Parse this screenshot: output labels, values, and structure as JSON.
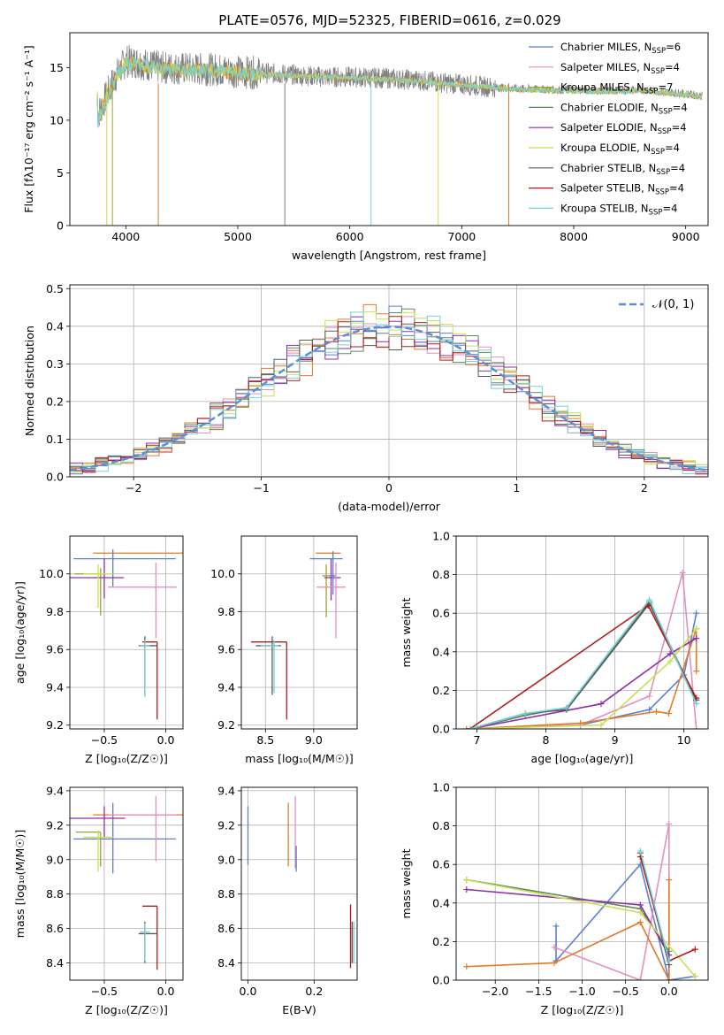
{
  "chart_data": [
    {
      "type": "line",
      "panel": "spectrum",
      "title": "PLATE=0576, MJD=52325, FIBERID=0616, z=0.029",
      "xlabel": "wavelength [Angstrom, rest frame]",
      "ylabel": "Flux [fλ10⁻¹⁷ erg cm⁻² s⁻¹ A⁻¹]",
      "xlim": [
        3500,
        9200
      ],
      "ylim": [
        0,
        18.3
      ],
      "xticks": [
        "4000",
        "5000",
        "6000",
        "7000",
        "8000",
        "9000"
      ],
      "yticks": [
        "0",
        "5",
        "10",
        "15"
      ],
      "grid": false,
      "legend_position": "top-right",
      "legend": [
        {
          "label": "Chabrier MILES, N",
          "sub": "SSP",
          "tail": "=6",
          "color": "#5b7fd1"
        },
        {
          "label": "Salpeter MILES, N",
          "sub": "SSP",
          "tail": "=4",
          "color": "#e38fbf"
        },
        {
          "label": "Kroupa MILES, N",
          "sub": "SSP",
          "tail": "=7",
          "color": "#9aa52d"
        },
        {
          "label": "Chabrier ELODIE, N",
          "sub": "SSP",
          "tail": "=4",
          "color": "#5b8a5b"
        },
        {
          "label": "Salpeter ELODIE, N",
          "sub": "SSP",
          "tail": "=4",
          "color": "#8e2fa8"
        },
        {
          "label": "Kroupa ELODIE, N",
          "sub": "SSP",
          "tail": "=4",
          "color": "#d4d84a"
        },
        {
          "label": "Chabrier STELIB, N",
          "sub": "SSP",
          "tail": "=4",
          "color": "#5a5a5a"
        },
        {
          "label": "Salpeter STELIB, N",
          "sub": "SSP",
          "tail": "=4",
          "color": "#b01c1c"
        },
        {
          "label": "Kroupa STELIB, N",
          "sub": "SSP",
          "tail": "=4",
          "color": "#74d2d6"
        }
      ],
      "series": [
        {
          "name": "data",
          "color": "#808080",
          "x": [
            3750,
            3900,
            4000,
            4100,
            4300,
            4500,
            4800,
            5000,
            5200,
            5500,
            5800,
            6000,
            6300,
            6600,
            7000,
            7300,
            7500,
            7800,
            8000,
            8300,
            8600,
            8800,
            9000,
            9150
          ],
          "y": [
            10.5,
            14.0,
            15.6,
            15.5,
            15.0,
            14.9,
            14.8,
            14.6,
            14.5,
            14.3,
            14.1,
            14.1,
            14.0,
            13.8,
            13.4,
            13.1,
            13.0,
            12.9,
            12.9,
            12.8,
            12.9,
            12.7,
            12.5,
            12.3
          ]
        },
        {
          "name": "model",
          "color": "#74d2d6",
          "x": [
            3750,
            3900,
            4000,
            4100,
            4300,
            4500,
            4800,
            5000,
            5200,
            5500,
            5800,
            6000,
            6300,
            6600,
            7000,
            7300,
            7500,
            7800,
            8000,
            8300,
            8600,
            8800,
            9000,
            9150
          ],
          "y": [
            10.0,
            13.8,
            15.4,
            15.3,
            14.9,
            14.8,
            14.7,
            14.5,
            14.4,
            14.2,
            14.1,
            14.0,
            13.9,
            13.7,
            13.3,
            13.1,
            12.9,
            12.8,
            12.8,
            12.7,
            12.8,
            12.6,
            12.4,
            12.2
          ]
        }
      ]
    },
    {
      "type": "line",
      "panel": "residuals",
      "xlabel": "(data-model)/error",
      "ylabel": "Normed distribution",
      "xlim": [
        -2.5,
        2.5
      ],
      "ylim": [
        0,
        0.51
      ],
      "xticks": [
        "−2",
        "−1",
        "0",
        "1",
        "2"
      ],
      "yticks": [
        "0.0",
        "0.1",
        "0.2",
        "0.3",
        "0.4",
        "0.5"
      ],
      "grid": true,
      "legend_position": "top-right",
      "legend_label": "𝒩(0, 1)",
      "series": [
        {
          "name": "𝒩(0, 1)",
          "style": "dashed",
          "color": "#5b8fd6",
          "function": "normal_pdf",
          "mu": 0,
          "sigma": 1
        }
      ],
      "histograms": {
        "bin_width": 0.1,
        "colors": [
          "#5b7fd1",
          "#e38fbf",
          "#e07b2a",
          "#5b8a5b",
          "#8e2fa8",
          "#c8e055",
          "#5a5a5a",
          "#b01c1c",
          "#74d2d6"
        ]
      }
    },
    {
      "type": "scatter",
      "panel": "age-vs-Z",
      "xlabel": "Z [log₁₀(Z/Z☉)]",
      "ylabel": "age  [log₁₀(age/yr)]",
      "xlim": [
        -0.78,
        0.14
      ],
      "ylim": [
        9.18,
        10.2
      ],
      "xticks": [
        "−0.5",
        "0.0"
      ],
      "yticks": [
        "9.2",
        "9.4",
        "9.6",
        "9.8",
        "10.0"
      ],
      "grid": true
    },
    {
      "type": "scatter",
      "panel": "age-vs-mass",
      "xlabel": "mass [log₁₀(M/M☉)]",
      "xlim": [
        8.25,
        9.45
      ],
      "ylim": [
        9.18,
        10.2
      ],
      "xticks": [
        "8.5",
        "9.0"
      ],
      "yticks": [
        "9.2",
        "9.4",
        "9.6",
        "9.8",
        "10.0"
      ],
      "grid": true
    },
    {
      "type": "line",
      "panel": "weight-vs-age",
      "xlabel": "age  [log₁₀(age/yr)]",
      "ylabel": "mass weight",
      "xlim": [
        6.7,
        10.35
      ],
      "ylim": [
        0,
        1.0
      ],
      "xticks": [
        "7",
        "8",
        "9",
        "10"
      ],
      "yticks": [
        "0.0",
        "0.2",
        "0.4",
        "0.6",
        "0.8",
        "1.0"
      ],
      "grid": true,
      "series": [
        {
          "name": "Chabrier MILES",
          "color": "#5b7fd1",
          "x": [
            6.9,
            8.5,
            9.5,
            10.0,
            10.18
          ],
          "y": [
            0.0,
            0.02,
            0.1,
            0.28,
            0.6
          ]
        },
        {
          "name": "Salpeter MILES",
          "color": "#e38fbf",
          "x": [
            6.9,
            8.5,
            9.5,
            9.98,
            10.18
          ],
          "y": [
            0.0,
            0.02,
            0.17,
            0.81,
            0.0
          ]
        },
        {
          "name": "Kroupa MILES",
          "color": "#e07b2a",
          "x": [
            6.85,
            8.5,
            9.6,
            9.78,
            10.18,
            10.18
          ],
          "y": [
            0.0,
            0.03,
            0.09,
            0.08,
            0.52,
            0.3
          ]
        },
        {
          "name": "Chabrier ELODIE",
          "color": "#5b8a5b",
          "x": [
            6.9,
            7.7,
            8.3,
            9.5,
            10.18
          ],
          "y": [
            0.0,
            0.07,
            0.11,
            0.66,
            0.15
          ]
        },
        {
          "name": "Salpeter ELODIE",
          "color": "#8e2fa8",
          "x": [
            6.9,
            8.8,
            9.8,
            10.18
          ],
          "y": [
            0.0,
            0.13,
            0.39,
            0.47
          ]
        },
        {
          "name": "Kroupa ELODIE",
          "color": "#c8e055",
          "x": [
            6.9,
            8.8,
            9.8,
            10.18
          ],
          "y": [
            0.0,
            0.02,
            0.35,
            0.52
          ]
        },
        {
          "name": "Chabrier STELIB",
          "color": "#5a5a5a",
          "x": [
            6.9,
            7.7,
            8.3,
            9.5,
            10.18
          ],
          "y": [
            0.0,
            0.08,
            0.1,
            0.65,
            0.15
          ]
        },
        {
          "name": "Salpeter STELIB",
          "color": "#b01c1c",
          "x": [
            6.9,
            9.48,
            10.18
          ],
          "y": [
            0.0,
            0.64,
            0.16
          ]
        },
        {
          "name": "Kroupa STELIB",
          "color": "#74d2d6",
          "x": [
            6.9,
            7.7,
            8.3,
            9.5,
            10.18
          ],
          "y": [
            0.0,
            0.08,
            0.11,
            0.67,
            0.13
          ]
        }
      ]
    },
    {
      "type": "scatter",
      "panel": "mass-vs-Z",
      "xlabel": "Z [log₁₀(Z/Z☉)]",
      "ylabel": "mass [log₁₀(M/M☉)]",
      "xlim": [
        -0.78,
        0.14
      ],
      "ylim": [
        8.3,
        9.42
      ],
      "xticks": [
        "−0.5",
        "0.0"
      ],
      "yticks": [
        "8.4",
        "8.6",
        "8.8",
        "9.0",
        "9.2",
        "9.4"
      ],
      "grid": true
    },
    {
      "type": "scatter",
      "panel": "mass-vs-ebv",
      "xlabel": "E(B-V)",
      "xlim": [
        -0.02,
        0.33
      ],
      "ylim": [
        8.3,
        9.42
      ],
      "xticks": [
        "0.0",
        "0.2"
      ],
      "yticks": [
        "8.4",
        "8.6",
        "8.8",
        "9.0",
        "9.2",
        "9.4"
      ],
      "grid": true,
      "error_bars": [
        {
          "color": "#5b7fd1",
          "x": 0.0,
          "y": [
            8.97,
            9.31
          ]
        },
        {
          "color": "#e07b2a",
          "x": 0.122,
          "y": [
            8.96,
            9.33
          ]
        },
        {
          "color": "#e38fbf",
          "x": 0.143,
          "y": [
            8.95,
            9.37
          ]
        },
        {
          "color": "#5b7fd1",
          "x": 0.146,
          "y": [
            8.93,
            9.08
          ]
        },
        {
          "color": "#b01c1c",
          "x": 0.31,
          "y": [
            8.37,
            8.74
          ]
        },
        {
          "color": "#5a5a5a",
          "x": 0.315,
          "y": [
            8.4,
            8.64
          ]
        },
        {
          "color": "#74d2d6",
          "x": 0.32,
          "y": [
            8.4,
            8.64
          ]
        }
      ]
    },
    {
      "type": "line",
      "panel": "weight-vs-Z",
      "xlabel": "Z [log₁₀(Z/Z☉)]",
      "ylabel": "mass weight",
      "xlim": [
        -2.45,
        0.45
      ],
      "ylim": [
        0,
        1.0
      ],
      "xticks": [
        "−2.0",
        "−1.5",
        "−1.0",
        "−0.5",
        "0.0"
      ],
      "yticks": [
        "0.0",
        "0.2",
        "0.4",
        "0.6",
        "0.8",
        "1.0"
      ],
      "grid": true,
      "series": [
        {
          "name": "Chabrier MILES",
          "color": "#5b7fd1",
          "x": [
            -1.3,
            -1.3,
            -0.33,
            0.0,
            0.3
          ],
          "y": [
            0.28,
            0.1,
            0.6,
            0.0,
            0.02
          ]
        },
        {
          "name": "Salpeter MILES",
          "color": "#e38fbf",
          "x": [
            -1.32,
            -0.33,
            0.0,
            0.0
          ],
          "y": [
            0.17,
            0.0,
            0.81,
            0.0
          ]
        },
        {
          "name": "Kroupa MILES",
          "color": "#e07b2a",
          "x": [
            -2.33,
            -1.32,
            -0.33,
            0.0,
            0.0
          ],
          "y": [
            0.07,
            0.09,
            0.3,
            0.0,
            0.52
          ]
        },
        {
          "name": "Chabrier ELODIE",
          "color": "#5b8a5b",
          "x": [
            -2.33,
            -0.33,
            0.0
          ],
          "y": [
            0.52,
            0.37,
            0.15
          ]
        },
        {
          "name": "Salpeter ELODIE",
          "color": "#8e2fa8",
          "x": [
            -2.33,
            -0.33,
            0.0
          ],
          "y": [
            0.47,
            0.39,
            0.13
          ]
        },
        {
          "name": "Kroupa ELODIE",
          "color": "#c8e055",
          "x": [
            -2.33,
            -0.33,
            0.3
          ],
          "y": [
            0.52,
            0.35,
            0.02
          ]
        },
        {
          "name": "Chabrier STELIB",
          "color": "#5a5a5a",
          "x": [
            -0.33,
            0.0
          ],
          "y": [
            0.66,
            0.08
          ]
        },
        {
          "name": "Salpeter STELIB",
          "color": "#b01c1c",
          "x": [
            -0.33,
            0.0,
            0.3
          ],
          "y": [
            0.64,
            0.1,
            0.16
          ]
        },
        {
          "name": "Kroupa STELIB",
          "color": "#74d2d6",
          "x": [
            -0.33,
            0.0
          ],
          "y": [
            0.67,
            0.1
          ]
        }
      ]
    }
  ]
}
